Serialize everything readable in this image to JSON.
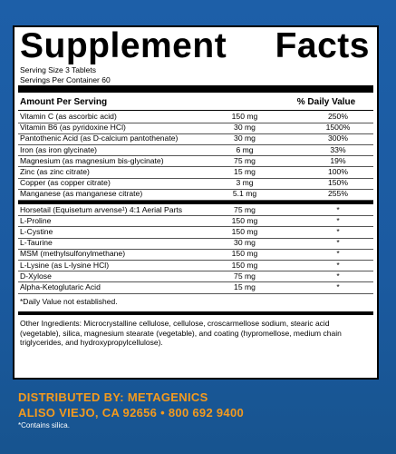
{
  "header": {
    "title_left": "Supplement",
    "title_right": "Facts",
    "serving_size": "Serving Size  3 Tablets",
    "servings_per_container": "Servings Per Container 60"
  },
  "table": {
    "columns": [
      "Amount Per Serving",
      "% Daily Value"
    ],
    "groups": [
      [
        [
          "Vitamin C (as ascorbic acid)",
          "150 mg",
          "250%"
        ],
        [
          "Vitamin B6 (as pyridoxine HCl)",
          "30 mg",
          "1500%"
        ],
        [
          "Pantothenic Acid (as D-calcium pantothenate)",
          "30 mg",
          "300%"
        ],
        [
          "Iron (as iron glycinate)",
          "6 mg",
          "33%"
        ],
        [
          "Magnesium (as magnesium bis-glycinate)",
          "75 mg",
          "19%"
        ],
        [
          "Zinc (as zinc citrate)",
          "15 mg",
          "100%"
        ],
        [
          "Copper (as copper citrate)",
          "3 mg",
          "150%"
        ],
        [
          "Manganese (as manganese citrate)",
          "5.1 mg",
          "255%"
        ]
      ],
      [
        [
          "Horsetail (Equisetum arvense¹) 4:1 Aerial Parts",
          "75 mg",
          "*"
        ],
        [
          "L-Proline",
          "150 mg",
          "*"
        ],
        [
          "L-Cystine",
          "150 mg",
          "*"
        ],
        [
          "L-Taurine",
          "30 mg",
          "*"
        ],
        [
          "MSM (methylsulfonylmethane)",
          "150 mg",
          "*"
        ],
        [
          "L-Lysine (as L-lysine HCl)",
          "150 mg",
          "*"
        ],
        [
          "D-Xylose",
          "75 mg",
          "*"
        ],
        [
          "Alpha-Ketoglutaric Acid",
          "15 mg",
          "*"
        ]
      ]
    ],
    "footnote": "*Daily Value not established."
  },
  "other_ingredients": "Other Ingredients: Microcrystalline cellulose, cellulose, croscarmellose sodium, stearic acid (vegetable), silica, magnesium stearate (vegetable), and coating (hypromellose, medium chain triglycerides, and hydroxypropylcellulose).",
  "footer": {
    "distributor": "DISTRIBUTED BY: METAGENICS",
    "address": "ALISO VIEJO, CA 92656 • 800 692 9400",
    "note": "*Contains silica."
  }
}
